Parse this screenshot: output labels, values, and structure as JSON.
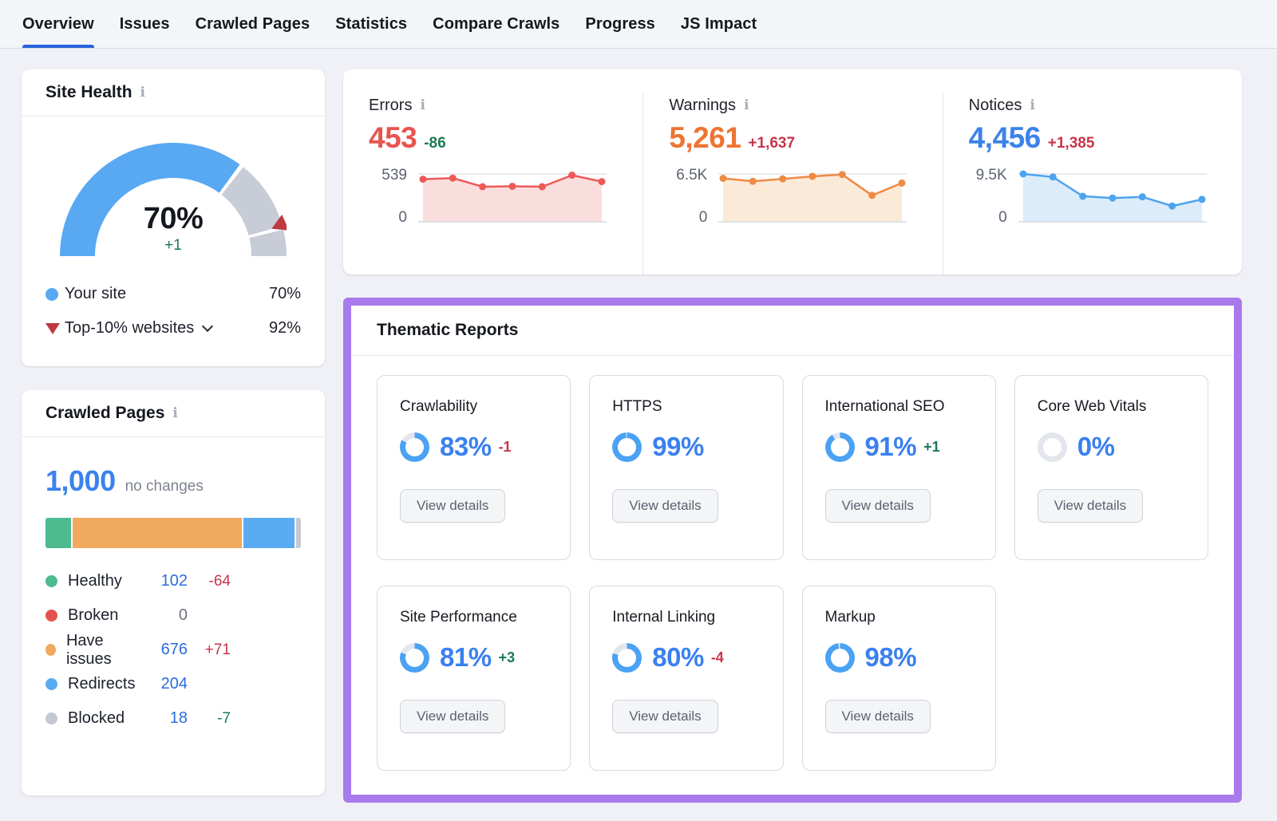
{
  "colors": {
    "accent_blue": "#3b82ed",
    "link_blue": "#2c6cdf",
    "delta_red": "#c9344a",
    "delta_green": "#1a7a52",
    "muted_gray": "#6f7480",
    "highlight_purple": "#a97aec",
    "gauge_blue": "#58a9f2",
    "gauge_gray": "#c7ccd6",
    "donut_blue": "#4ba2f3",
    "donut_track": "#e3e6ec"
  },
  "icons": {
    "info": "i"
  },
  "nav": {
    "tabs": [
      {
        "label": "Overview",
        "active": true
      },
      {
        "label": "Issues",
        "active": false
      },
      {
        "label": "Crawled Pages",
        "active": false
      },
      {
        "label": "Statistics",
        "active": false
      },
      {
        "label": "Compare Crawls",
        "active": false
      },
      {
        "label": "Progress",
        "active": false
      },
      {
        "label": "JS Impact",
        "active": false
      }
    ]
  },
  "site_health": {
    "title": "Site Health",
    "score": "70%",
    "score_pct": 70,
    "delta": "+1",
    "benchmark_pct": 92,
    "legend": [
      {
        "marker": "dot",
        "marker_color": "#58a9f2",
        "label": "Your site",
        "value": "70%",
        "chevron": false
      },
      {
        "marker": "triangle",
        "marker_color": "#bf3941",
        "label": "Top-10% websites",
        "value": "92%",
        "chevron": true
      }
    ]
  },
  "crawled_pages": {
    "title": "Crawled Pages",
    "total": "1,000",
    "note": "no changes",
    "segments": [
      {
        "name": "healthy",
        "pct": 10.2,
        "color": "#4dba90"
      },
      {
        "name": "have-issues",
        "pct": 67.6,
        "color": "#f0a95e"
      },
      {
        "name": "redirects",
        "pct": 20.4,
        "color": "#5aabf2"
      },
      {
        "name": "blocked",
        "pct": 1.8,
        "color": "#c3c8d2"
      }
    ],
    "rows": [
      {
        "label": "Healthy",
        "dot_color": "#4dba90",
        "value": "102",
        "value_color": "#2c6cdf",
        "delta": "-64",
        "delta_color": "#c9344a"
      },
      {
        "label": "Broken",
        "dot_color": "#e4504e",
        "value": "0",
        "value_color": "#6f7480",
        "delta": "",
        "delta_color": ""
      },
      {
        "label": "Have issues",
        "dot_color": "#f0a95e",
        "value": "676",
        "value_color": "#2c6cdf",
        "delta": "+71",
        "delta_color": "#c9344a"
      },
      {
        "label": "Redirects",
        "dot_color": "#5aabf2",
        "value": "204",
        "value_color": "#2c6cdf",
        "delta": "",
        "delta_color": ""
      },
      {
        "label": "Blocked",
        "dot_color": "#c3c8d2",
        "value": "18",
        "value_color": "#2c6cdf",
        "delta": "-7",
        "delta_color": "#1a7a52"
      }
    ]
  },
  "stats": [
    {
      "label": "Errors",
      "value": "453",
      "value_color": "#e8544e",
      "delta": "-86",
      "delta_color": "#1a7a52",
      "axis_max": "539",
      "axis_min": "0",
      "y_max": 539,
      "series": [
        480,
        492,
        395,
        400,
        395,
        525,
        453
      ],
      "line_color": "#ed5a57",
      "fill_color": "#fadede"
    },
    {
      "label": "Warnings",
      "value": "5,261",
      "value_color": "#ed7433",
      "delta": "+1,637",
      "delta_color": "#c9344a",
      "axis_max": "6.5K",
      "axis_min": "0",
      "y_max": 6500,
      "series": [
        5900,
        5500,
        5830,
        6180,
        6420,
        3590,
        5261
      ],
      "line_color": "#ee8a45",
      "fill_color": "#fcead9"
    },
    {
      "label": "Notices",
      "value": "4,456",
      "value_color": "#3c82ea",
      "delta": "+1,385",
      "delta_color": "#c9344a",
      "axis_max": "9.5K",
      "axis_min": "0",
      "y_max": 9500,
      "series": [
        9500,
        8900,
        5075,
        4720,
        4960,
        3130,
        4456
      ],
      "line_color": "#4da3ee",
      "fill_color": "#dcecfa"
    }
  ],
  "thematic": {
    "title": "Thematic Reports",
    "button_label": "View details",
    "cards": [
      {
        "title": "Crawlability",
        "pct": 83,
        "pct_label": "83%",
        "delta": "-1",
        "delta_color": "#c9344a"
      },
      {
        "title": "HTTPS",
        "pct": 99,
        "pct_label": "99%",
        "delta": "",
        "delta_color": ""
      },
      {
        "title": "International SEO",
        "pct": 91,
        "pct_label": "91%",
        "delta": "+1",
        "delta_color": "#1a7a52"
      },
      {
        "title": "Core Web Vitals",
        "pct": 0,
        "pct_label": "0%",
        "delta": "",
        "delta_color": ""
      },
      {
        "title": "Site Performance",
        "pct": 81,
        "pct_label": "81%",
        "delta": "+3",
        "delta_color": "#1a7a52"
      },
      {
        "title": "Internal Linking",
        "pct": 80,
        "pct_label": "80%",
        "delta": "-4",
        "delta_color": "#c9344a"
      },
      {
        "title": "Markup",
        "pct": 98,
        "pct_label": "98%",
        "delta": "",
        "delta_color": ""
      }
    ]
  }
}
